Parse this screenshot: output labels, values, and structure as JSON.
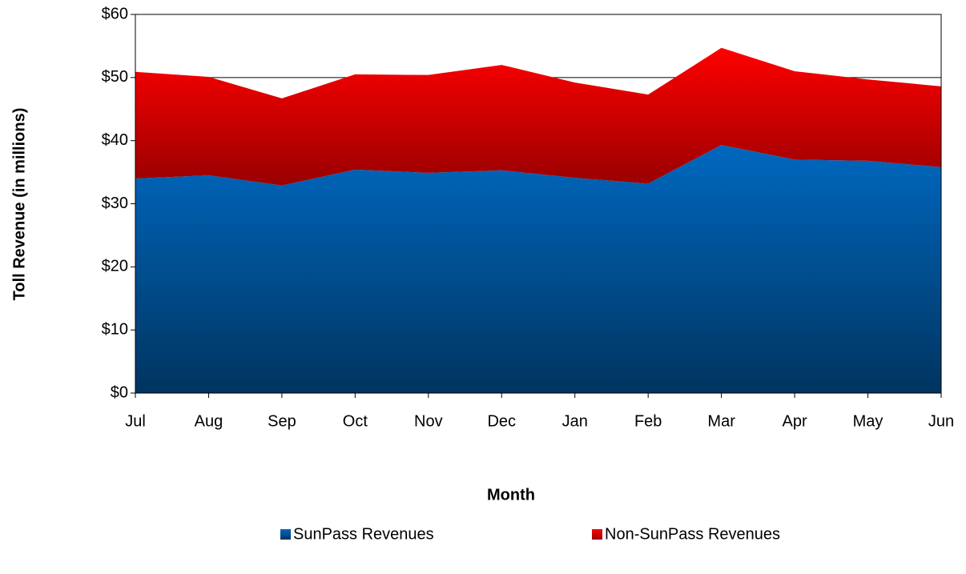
{
  "chart_data": {
    "type": "stacked_area",
    "x_label": "Month",
    "y_label": "Toll Revenue (in millions)",
    "categories": [
      "Jul",
      "Aug",
      "Sep",
      "Oct",
      "Nov",
      "Dec",
      "Jan",
      "Feb",
      "Mar",
      "Apr",
      "May",
      "Jun"
    ],
    "series": [
      {
        "name": "SunPass Revenues",
        "color": "#0068c0",
        "values": [
          34.0,
          34.5,
          32.9,
          35.4,
          34.9,
          35.3,
          34.1,
          33.2,
          39.3,
          37.0,
          36.8,
          35.8
        ]
      },
      {
        "name": "Non-SunPass Revenues",
        "color": "#ff0000",
        "values": [
          16.9,
          15.6,
          13.8,
          15.1,
          15.5,
          16.7,
          15.1,
          14.1,
          15.4,
          14.0,
          12.9,
          12.8
        ]
      }
    ],
    "ylim": [
      0,
      60
    ],
    "yticks": [
      {
        "value": 0,
        "label": "$0"
      },
      {
        "value": 10,
        "label": "$10"
      },
      {
        "value": 20,
        "label": "$20"
      },
      {
        "value": 30,
        "label": "$30"
      },
      {
        "value": 40,
        "label": "$40"
      },
      {
        "value": 50,
        "label": "$50"
      },
      {
        "value": 60,
        "label": "$60"
      }
    ],
    "grid": true
  }
}
